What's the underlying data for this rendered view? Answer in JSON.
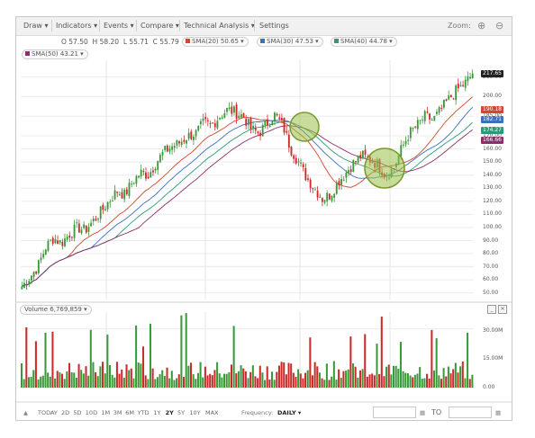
{
  "toolbar": {
    "menus": [
      "Draw ▾",
      "Indicators ▾",
      "Events ▾",
      "Compare ▾",
      "Technical Analysis ▾",
      "Settings"
    ],
    "zoom_label": "Zoom:",
    "zoom_in_icon": "magnifier-plus-icon",
    "zoom_out_icon": "magnifier-minus-icon"
  },
  "quote": {
    "open": "O 57.50",
    "high": "H 58.20",
    "low": "L 55.71",
    "close": "C 55.79"
  },
  "indicators": [
    {
      "label": "SMA(20) 50.65",
      "color": "#d9442d"
    },
    {
      "label": "SMA(30) 47.53",
      "color": "#3a6fc1"
    },
    {
      "label": "SMA(40) 44.78",
      "color": "#2e9a7a"
    },
    {
      "label": "SMA(50) 43.21",
      "color": "#8e2d6b"
    }
  ],
  "price_axis": {
    "ticks": [
      "215.00",
      "200.00",
      "185.00",
      "170.00",
      "160.00",
      "150.00",
      "140.00",
      "130.00",
      "120.00",
      "110.00",
      "100.00",
      "90.00",
      "80.00",
      "70.00",
      "60.00",
      "50.00"
    ],
    "flags": [
      {
        "label": "217.65",
        "color": "#222222"
      },
      {
        "label": "190.18",
        "color": "#d9442d"
      },
      {
        "label": "182.71",
        "color": "#3a6fc1"
      },
      {
        "label": "174.27",
        "color": "#2e9a7a"
      },
      {
        "label": "166.66",
        "color": "#8e2d6b"
      }
    ]
  },
  "volume": {
    "header": "Volume 6,769,859 ▾",
    "ticks": [
      "30.00M",
      "15.00M",
      "0.00"
    ]
  },
  "range_bar": {
    "ranges": [
      "TODAY",
      "2D",
      "5D",
      "10D",
      "1M",
      "3M",
      "6M",
      "YTD",
      "1Y",
      "2Y",
      "5Y",
      "10Y",
      "MAX"
    ],
    "active": "2Y",
    "frequency_label": "Frequency:",
    "frequency_value": "DAILY ▾",
    "to_label": "TO"
  },
  "colors": {
    "up": "#3a9a3a",
    "down": "#cc2a2a",
    "highlight_circle": "#9bbf4a"
  },
  "chart_data": {
    "type": "candlestick",
    "y_unit": "price",
    "ylim": [
      45,
      225
    ],
    "closes_sampled": [
      55,
      62,
      70,
      85,
      92,
      88,
      95,
      100,
      98,
      105,
      112,
      120,
      128,
      125,
      135,
      142,
      140,
      150,
      158,
      162,
      165,
      170,
      172,
      180,
      178,
      185,
      190,
      188,
      185,
      175,
      172,
      180,
      186,
      178,
      160,
      150,
      138,
      130,
      122,
      125,
      135,
      142,
      150,
      155,
      152,
      148,
      140,
      145,
      160,
      172,
      178,
      185,
      182,
      190,
      198,
      205,
      210,
      217
    ],
    "volume_unit": "M",
    "volume_ylim": [
      0,
      38
    ]
  }
}
